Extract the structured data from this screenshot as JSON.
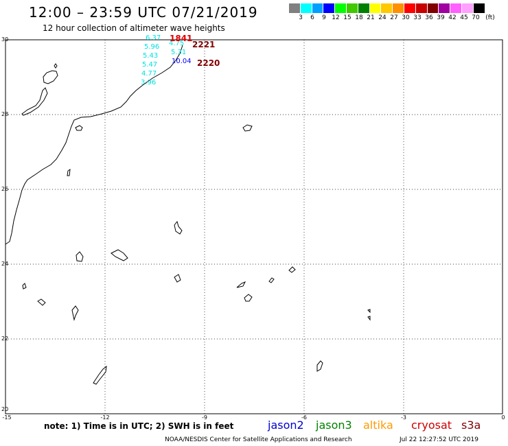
{
  "header": {
    "title": "12:00 – 23:59 UTC 07/21/2019",
    "subtitle": "12 hour collection of altimeter wave heights"
  },
  "color_scale": {
    "colors": [
      "#808080",
      "#00ffff",
      "#00a0ff",
      "#0000ff",
      "#00ff00",
      "#40c800",
      "#008000",
      "#ffff00",
      "#ffc800",
      "#ff9000",
      "#ff0000",
      "#c80000",
      "#800000",
      "#a000a0",
      "#ff60ff",
      "#ffa0ff",
      "#000000"
    ],
    "ticks": [
      "3",
      "6",
      "9",
      "12",
      "15",
      "18",
      "21",
      "24",
      "27",
      "30",
      "33",
      "36",
      "39",
      "42",
      "45",
      "70",
      "(ft)"
    ]
  },
  "map": {
    "lat_range": [
      20,
      30
    ],
    "lon_range": [
      -15,
      0
    ],
    "lat_ticks": [
      {
        "value": 30,
        "label": "30"
      },
      {
        "value": 28,
        "label": "28"
      },
      {
        "value": 26,
        "label": "26"
      },
      {
        "value": 24,
        "label": "24"
      },
      {
        "value": 22,
        "label": "22"
      },
      {
        "value": 20,
        "label": "20"
      }
    ],
    "lon_ticks": [
      {
        "value": -15,
        "label": "-15"
      },
      {
        "value": -12,
        "label": "-12"
      },
      {
        "value": -9,
        "label": "-9"
      },
      {
        "value": -6,
        "label": "-6"
      },
      {
        "value": -3,
        "label": "-3"
      },
      {
        "value": 0,
        "label": "0"
      }
    ]
  },
  "wave_heights": [
    {
      "value": "6.37",
      "color": "#00e0e0"
    },
    {
      "value": "5.96",
      "color": "#00e0e0"
    },
    {
      "value": "5.43",
      "color": "#00e0e0"
    },
    {
      "value": "5.47",
      "color": "#00e0e0"
    },
    {
      "value": "4.77",
      "color": "#00e0e0"
    },
    {
      "value": "3.96",
      "color": "#00e0e0"
    },
    {
      "value": "4.75",
      "color": "#00e0e0"
    },
    {
      "value": "5.31",
      "color": "#00e0e0"
    },
    {
      "value": "10.04",
      "color": "#0000ff"
    }
  ],
  "pass_times": [
    {
      "value": "1841",
      "color": "#e00000"
    },
    {
      "value": "2221",
      "color": "#800000"
    },
    {
      "value": "2220",
      "color": "#800000"
    }
  ],
  "footer": {
    "note": "note: 1) Time is in UTC; 2) SWH is in feet",
    "satellites": [
      {
        "name": "jason2",
        "color": "#0000cc"
      },
      {
        "name": "jason3",
        "color": "#008000"
      },
      {
        "name": "altika",
        "color": "#ff9900"
      },
      {
        "name": "cryosat",
        "color": "#cc0000"
      },
      {
        "name": "s3a",
        "color": "#800000"
      }
    ],
    "credit": "NOAA/NESDIS Center for Satellite Applications and Research",
    "timestamp": "Jul 22 12:27:52 UTC 2019"
  }
}
